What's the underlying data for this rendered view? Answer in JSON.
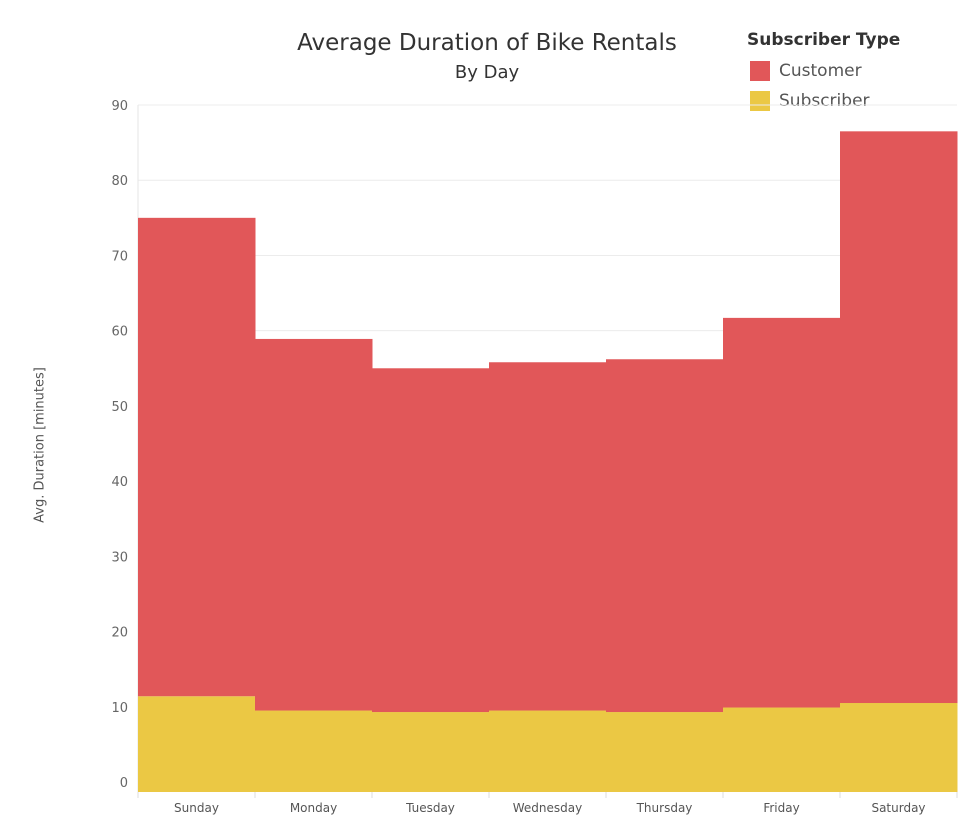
{
  "chart_data": {
    "type": "bar",
    "title": "Average Duration of Bike Rentals",
    "subtitle": "By Day",
    "ylabel": "Avg. Duration [minutes]",
    "xlabel": "",
    "categories": [
      "Sunday",
      "Monday",
      "Tuesday",
      "Wednesday",
      "Thursday",
      "Friday",
      "Saturday"
    ],
    "series": [
      {
        "name": "Subscriber",
        "color": "#ebc844",
        "values": [
          11.4,
          9.5,
          9.3,
          9.5,
          9.3,
          9.9,
          10.5
        ]
      },
      {
        "name": "Customer",
        "color": "#e15759",
        "values": [
          63.6,
          49.4,
          45.7,
          46.3,
          46.9,
          51.8,
          76.0
        ]
      }
    ],
    "stacked": true,
    "ylim": [
      0,
      90
    ],
    "yticks": [
      0,
      10,
      20,
      30,
      40,
      50,
      60,
      70,
      80,
      90
    ],
    "grid": true,
    "legend": {
      "title": "Subscriber Type",
      "position": "top-right",
      "items": [
        "Customer",
        "Subscriber"
      ]
    }
  }
}
